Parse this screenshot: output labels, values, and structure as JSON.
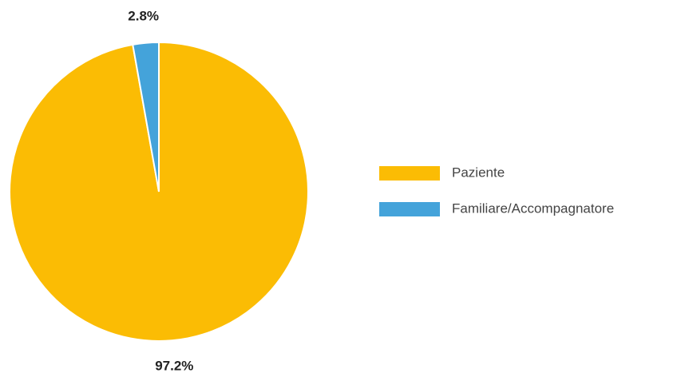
{
  "chart_data": {
    "type": "pie",
    "categories": [
      "Paziente",
      "Familiare/Accompagnatore"
    ],
    "values": [
      97.2,
      2.8
    ],
    "value_labels": [
      "97.2%",
      "2.8%"
    ],
    "colors": [
      "#fbbc04",
      "#44a3da"
    ],
    "legend": "right"
  }
}
